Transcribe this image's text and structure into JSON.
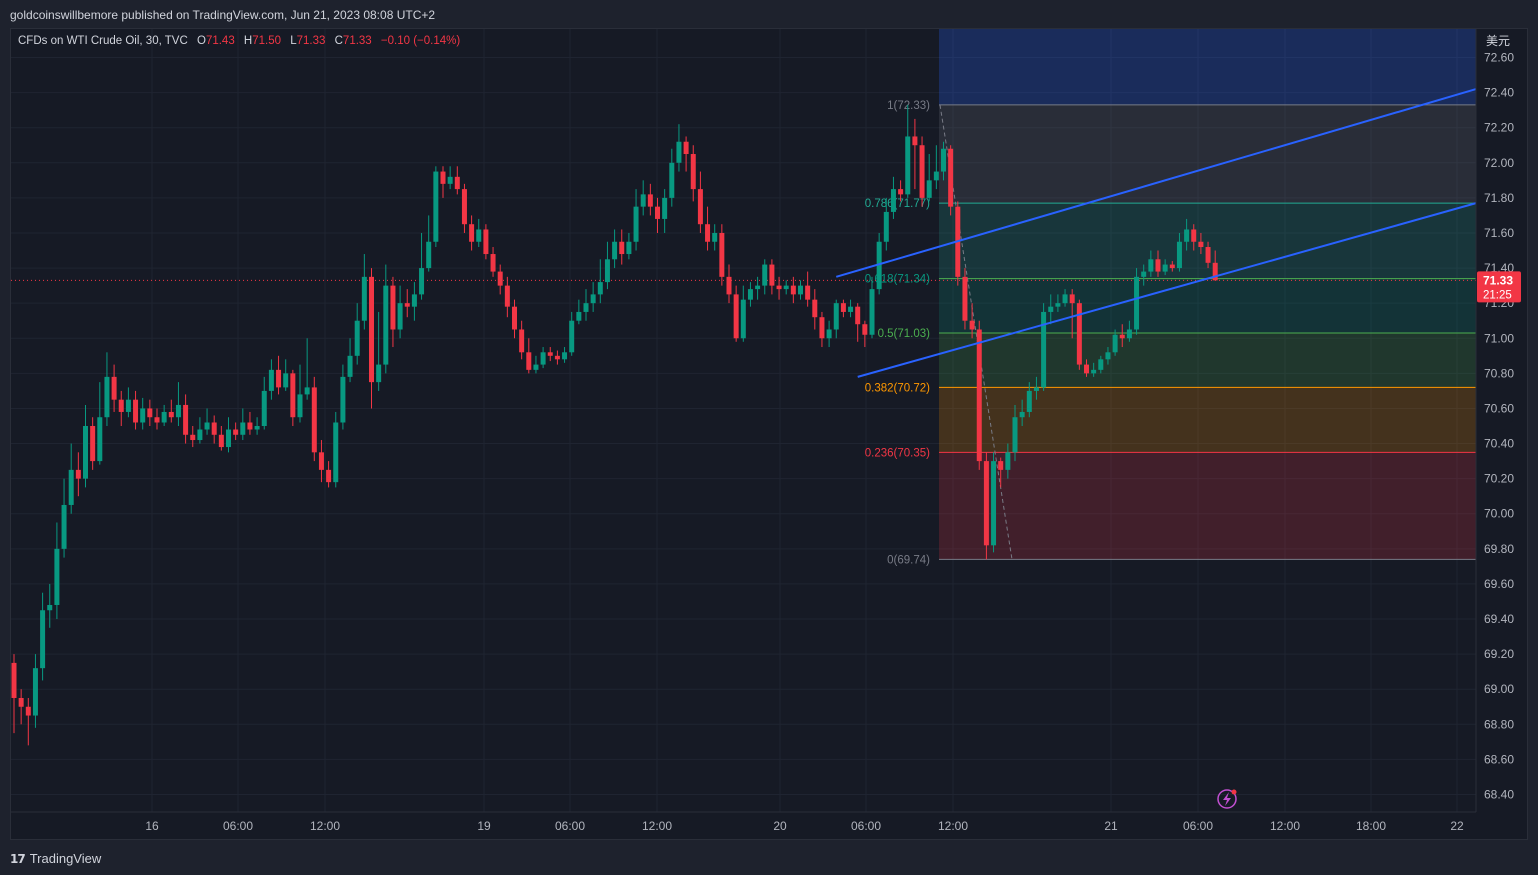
{
  "header": {
    "published": "goldcoinswillbemore published on TradingView.com, Jun 21, 2023 08:08 UTC+2"
  },
  "legend": {
    "symbol": "CFDs on WTI Crude Oil, 30, TVC",
    "o_key": "O",
    "o_val": "71.43",
    "h_key": "H",
    "h_val": "71.50",
    "l_key": "L",
    "l_val": "71.33",
    "c_key": "C",
    "c_val": "71.33",
    "change": "−0.10 (−0.14%)"
  },
  "footer": {
    "brand": "TradingView",
    "brand_mark": "17"
  },
  "colors": {
    "up": "#089981",
    "down": "#f23645",
    "channel": "#2962ff",
    "background": "#161a25"
  },
  "icons": {
    "lightning": "lightning-icon"
  },
  "chart_data": {
    "type": "candlestick",
    "currency_label": "美元",
    "price_axis": {
      "ticks": [
        "72.60",
        "72.40",
        "72.20",
        "72.00",
        "71.80",
        "71.60",
        "71.40",
        "71.20",
        "71.00",
        "70.80",
        "70.60",
        "70.40",
        "70.20",
        "70.00",
        "69.80",
        "69.60",
        "69.40",
        "69.20",
        "69.00",
        "68.80",
        "68.60",
        "68.40"
      ],
      "range": [
        68.35,
        72.75
      ]
    },
    "time_axis": {
      "ticks": [
        "16",
        "06:00",
        "12:00",
        "19",
        "06:00",
        "12:00",
        "20",
        "06:00",
        "12:00",
        "21",
        "06:00",
        "12:00",
        "18:00",
        "22"
      ]
    },
    "last_price": {
      "value": "71.33",
      "countdown": "21:25"
    },
    "fibonacci": [
      {
        "level": "1(72.33)",
        "price": 72.33,
        "label_color": "#787b86",
        "line_color": "#787b86"
      },
      {
        "level": "0.786(71.77)",
        "price": 71.77,
        "label_color": "#22ab94",
        "line_color": "#22ab94"
      },
      {
        "level": "0.618(71.34)",
        "price": 71.34,
        "label_color": "#089981",
        "line_color": "#4caf50"
      },
      {
        "level": "0.5(71.03)",
        "price": 71.03,
        "label_color": "#4caf50",
        "line_color": "#4caf50"
      },
      {
        "level": "0.382(70.72)",
        "price": 70.72,
        "label_color": "#ff9800",
        "line_color": "#ff9800"
      },
      {
        "level": "0.236(70.35)",
        "price": 70.35,
        "label_color": "#f23645",
        "line_color": "#f23645"
      },
      {
        "level": "0(69.74)",
        "price": 69.74,
        "label_color": "#787b86",
        "line_color": "#787b86"
      }
    ],
    "candles": [
      [
        69.15,
        68.95,
        69.2,
        68.75
      ],
      [
        68.95,
        68.9,
        69.0,
        68.8
      ],
      [
        68.9,
        68.85,
        68.95,
        68.68
      ],
      [
        68.85,
        69.12,
        69.2,
        68.78
      ],
      [
        69.12,
        69.45,
        69.55,
        69.05
      ],
      [
        69.45,
        69.48,
        69.6,
        69.35
      ],
      [
        69.48,
        69.8,
        69.95,
        69.4
      ],
      [
        69.8,
        70.05,
        70.2,
        69.75
      ],
      [
        70.05,
        70.25,
        70.4,
        70.0
      ],
      [
        70.25,
        70.2,
        70.35,
        70.1
      ],
      [
        70.2,
        70.5,
        70.62,
        70.15
      ],
      [
        70.5,
        70.3,
        70.55,
        70.25
      ],
      [
        70.3,
        70.55,
        70.75,
        70.28
      ],
      [
        70.55,
        70.78,
        70.92,
        70.5
      ],
      [
        70.78,
        70.65,
        70.85,
        70.58
      ],
      [
        70.65,
        70.58,
        70.7,
        70.5
      ],
      [
        70.58,
        70.65,
        70.72,
        70.55
      ],
      [
        70.65,
        70.52,
        70.7,
        70.48
      ],
      [
        70.52,
        70.6,
        70.66,
        70.48
      ],
      [
        70.6,
        70.55,
        70.65,
        70.5
      ],
      [
        70.55,
        70.52,
        70.6,
        70.48
      ],
      [
        70.52,
        70.58,
        70.62,
        70.5
      ],
      [
        70.58,
        70.55,
        70.65,
        70.52
      ],
      [
        70.55,
        70.62,
        70.75,
        70.5
      ],
      [
        70.62,
        70.45,
        70.68,
        70.4
      ],
      [
        70.45,
        70.42,
        70.5,
        70.38
      ],
      [
        70.42,
        70.48,
        70.55,
        70.4
      ],
      [
        70.48,
        70.52,
        70.6,
        70.45
      ],
      [
        70.52,
        70.45,
        70.56,
        70.4
      ],
      [
        70.45,
        70.38,
        70.5,
        70.36
      ],
      [
        70.38,
        70.48,
        70.55,
        70.35
      ],
      [
        70.48,
        70.45,
        70.52,
        70.42
      ],
      [
        70.45,
        70.52,
        70.6,
        70.42
      ],
      [
        70.52,
        70.48,
        70.58,
        70.45
      ],
      [
        70.48,
        70.5,
        70.55,
        70.45
      ],
      [
        70.5,
        70.7,
        70.78,
        70.48
      ],
      [
        70.7,
        70.82,
        70.88,
        70.65
      ],
      [
        70.82,
        70.72,
        70.9,
        70.68
      ],
      [
        70.72,
        70.8,
        70.88,
        70.7
      ],
      [
        70.8,
        70.55,
        70.82,
        70.5
      ],
      [
        70.55,
        70.68,
        70.85,
        70.52
      ],
      [
        70.68,
        70.72,
        71.0,
        70.65
      ],
      [
        70.72,
        70.35,
        70.78,
        70.3
      ],
      [
        70.35,
        70.25,
        70.42,
        70.18
      ],
      [
        70.25,
        70.18,
        70.3,
        70.15
      ],
      [
        70.18,
        70.52,
        70.58,
        70.15
      ],
      [
        70.52,
        70.78,
        70.85,
        70.48
      ],
      [
        70.78,
        70.9,
        71.0,
        70.75
      ],
      [
        70.9,
        71.1,
        71.2,
        70.85
      ],
      [
        71.1,
        71.35,
        71.48,
        71.05
      ],
      [
        71.35,
        70.75,
        71.4,
        70.6
      ],
      [
        70.75,
        70.85,
        71.15,
        70.7
      ],
      [
        70.85,
        71.3,
        71.42,
        70.8
      ],
      [
        71.3,
        71.05,
        71.35,
        70.95
      ],
      [
        71.05,
        71.2,
        71.3,
        71.0
      ],
      [
        71.2,
        71.18,
        71.28,
        71.12
      ],
      [
        71.18,
        71.25,
        71.32,
        71.1
      ],
      [
        71.25,
        71.4,
        71.6,
        71.22
      ],
      [
        71.4,
        71.55,
        71.7,
        71.38
      ],
      [
        71.55,
        71.95,
        71.98,
        71.52
      ],
      [
        71.95,
        71.88,
        71.98,
        71.8
      ],
      [
        71.88,
        71.92,
        71.98,
        71.85
      ],
      [
        71.92,
        71.85,
        71.98,
        71.82
      ],
      [
        71.85,
        71.65,
        71.88,
        71.6
      ],
      [
        71.65,
        71.55,
        71.7,
        71.5
      ],
      [
        71.55,
        71.62,
        71.68,
        71.52
      ],
      [
        71.62,
        71.48,
        71.65,
        71.45
      ],
      [
        71.48,
        71.38,
        71.52,
        71.35
      ],
      [
        71.38,
        71.3,
        71.42,
        71.25
      ],
      [
        71.3,
        71.18,
        71.35,
        71.12
      ],
      [
        71.18,
        71.05,
        71.22,
        71.0
      ],
      [
        71.05,
        70.92,
        71.1,
        70.88
      ],
      [
        70.92,
        70.82,
        71.0,
        70.8
      ],
      [
        70.82,
        70.85,
        70.9,
        70.8
      ],
      [
        70.85,
        70.92,
        70.95,
        70.83
      ],
      [
        70.92,
        70.9,
        70.95,
        70.87
      ],
      [
        70.9,
        70.88,
        70.93,
        70.85
      ],
      [
        70.88,
        70.92,
        70.95,
        70.86
      ],
      [
        70.92,
        71.1,
        71.15,
        70.9
      ],
      [
        71.1,
        71.15,
        71.22,
        71.08
      ],
      [
        71.15,
        71.2,
        71.28,
        71.1
      ],
      [
        71.2,
        71.25,
        71.32,
        71.15
      ],
      [
        71.25,
        71.32,
        71.45,
        71.2
      ],
      [
        71.32,
        71.45,
        71.55,
        71.28
      ],
      [
        71.45,
        71.55,
        71.62,
        71.4
      ],
      [
        71.55,
        71.48,
        71.62,
        71.42
      ],
      [
        71.48,
        71.55,
        71.6,
        71.45
      ],
      [
        71.55,
        71.75,
        71.85,
        71.5
      ],
      [
        71.75,
        71.82,
        71.9,
        71.7
      ],
      [
        71.82,
        71.75,
        71.88,
        71.7
      ],
      [
        71.75,
        71.68,
        71.8,
        71.6
      ],
      [
        71.68,
        71.8,
        71.85,
        71.6
      ],
      [
        71.8,
        72.0,
        72.08,
        71.75
      ],
      [
        72.0,
        72.12,
        72.22,
        71.95
      ],
      [
        72.12,
        72.05,
        72.15,
        71.95
      ],
      [
        72.05,
        71.85,
        72.1,
        71.78
      ],
      [
        71.85,
        71.65,
        71.95,
        71.6
      ],
      [
        71.65,
        71.55,
        71.75,
        71.5
      ],
      [
        71.55,
        71.6,
        71.65,
        71.5
      ],
      [
        71.6,
        71.35,
        71.65,
        71.3
      ],
      [
        71.35,
        71.25,
        71.42,
        71.2
      ],
      [
        71.25,
        71.0,
        71.3,
        70.98
      ],
      [
        71.0,
        71.22,
        71.3,
        70.98
      ],
      [
        71.22,
        71.28,
        71.32,
        71.18
      ],
      [
        71.28,
        71.3,
        71.35,
        71.22
      ],
      [
        71.3,
        71.42,
        71.45,
        71.25
      ],
      [
        71.42,
        71.3,
        71.45,
        71.25
      ],
      [
        71.3,
        71.28,
        71.35,
        71.22
      ],
      [
        71.28,
        71.3,
        71.33,
        71.25
      ],
      [
        71.3,
        71.25,
        71.35,
        71.2
      ],
      [
        71.25,
        71.3,
        71.33,
        71.22
      ],
      [
        71.3,
        71.22,
        71.38,
        71.18
      ],
      [
        71.22,
        71.12,
        71.28,
        71.05
      ],
      [
        71.12,
        71.0,
        71.15,
        70.95
      ],
      [
        71.0,
        71.05,
        71.1,
        70.95
      ],
      [
        71.05,
        71.2,
        71.22,
        71.0
      ],
      [
        71.2,
        71.15,
        71.22,
        71.12
      ],
      [
        71.15,
        71.18,
        71.22,
        71.12
      ],
      [
        71.18,
        71.08,
        71.2,
        70.98
      ],
      [
        71.08,
        71.02,
        71.1,
        70.95
      ],
      [
        71.02,
        71.28,
        71.35,
        71.0
      ],
      [
        71.28,
        71.55,
        71.6,
        71.25
      ],
      [
        71.55,
        71.72,
        71.8,
        71.5
      ],
      [
        71.72,
        71.85,
        71.92,
        71.68
      ],
      [
        71.85,
        71.82,
        71.9,
        71.78
      ],
      [
        71.82,
        72.15,
        72.33,
        71.8
      ],
      [
        72.15,
        72.1,
        72.25,
        71.85
      ],
      [
        72.1,
        71.8,
        72.15,
        71.75
      ],
      [
        71.8,
        71.9,
        72.05,
        71.78
      ],
      [
        71.9,
        71.95,
        72.1,
        71.85
      ],
      [
        71.95,
        72.08,
        72.12,
        71.9
      ],
      [
        72.08,
        71.75,
        72.1,
        71.7
      ],
      [
        71.75,
        71.35,
        71.78,
        71.3
      ],
      [
        71.35,
        71.1,
        71.4,
        71.05
      ],
      [
        71.1,
        71.05,
        71.2,
        71.0
      ],
      [
        71.05,
        70.3,
        71.1,
        70.25
      ],
      [
        70.3,
        69.82,
        70.35,
        69.74
      ],
      [
        69.82,
        70.3,
        70.35,
        69.78
      ],
      [
        70.3,
        70.25,
        70.32,
        70.15
      ],
      [
        70.25,
        70.35,
        70.4,
        70.2
      ],
      [
        70.35,
        70.55,
        70.62,
        70.3
      ],
      [
        70.55,
        70.58,
        70.65,
        70.5
      ],
      [
        70.58,
        70.7,
        70.75,
        70.55
      ],
      [
        70.7,
        70.72,
        70.78,
        70.65
      ],
      [
        70.72,
        71.15,
        71.2,
        70.7
      ],
      [
        71.15,
        71.18,
        71.25,
        71.08
      ],
      [
        71.18,
        71.2,
        71.25,
        71.15
      ],
      [
        71.2,
        71.25,
        71.28,
        71.18
      ],
      [
        71.25,
        71.2,
        71.28,
        71.0
      ],
      [
        71.2,
        70.85,
        71.22,
        70.82
      ],
      [
        70.85,
        70.8,
        70.88,
        70.78
      ],
      [
        70.8,
        70.82,
        70.86,
        70.78
      ],
      [
        70.82,
        70.88,
        70.9,
        70.8
      ],
      [
        70.88,
        70.92,
        70.95,
        70.85
      ],
      [
        70.92,
        71.02,
        71.05,
        70.9
      ],
      [
        71.02,
        71.0,
        71.08,
        70.95
      ],
      [
        71.0,
        71.05,
        71.1,
        70.98
      ],
      [
        71.05,
        71.35,
        71.4,
        71.02
      ],
      [
        71.35,
        71.38,
        71.42,
        71.3
      ],
      [
        71.38,
        71.45,
        71.5,
        71.35
      ],
      [
        71.45,
        71.38,
        71.5,
        71.35
      ],
      [
        71.38,
        71.42,
        71.45,
        71.36
      ],
      [
        71.42,
        71.4,
        71.44,
        71.38
      ],
      [
        71.4,
        71.55,
        71.6,
        71.38
      ],
      [
        71.55,
        71.62,
        71.68,
        71.5
      ],
      [
        71.62,
        71.55,
        71.65,
        71.5
      ],
      [
        71.55,
        71.52,
        71.6,
        71.48
      ],
      [
        71.52,
        71.43,
        71.55,
        71.4
      ],
      [
        71.43,
        71.33,
        71.5,
        71.33
      ]
    ],
    "channel": {
      "upper": [
        [
          "x_index_start",
          115,
          71.35
        ],
        [
          "x_end_ratio",
          1.0,
          72.42
        ]
      ],
      "lower": [
        [
          "x_index_start",
          118,
          70.78
        ],
        [
          "x_end_ratio",
          1.0,
          71.77
        ]
      ]
    }
  }
}
